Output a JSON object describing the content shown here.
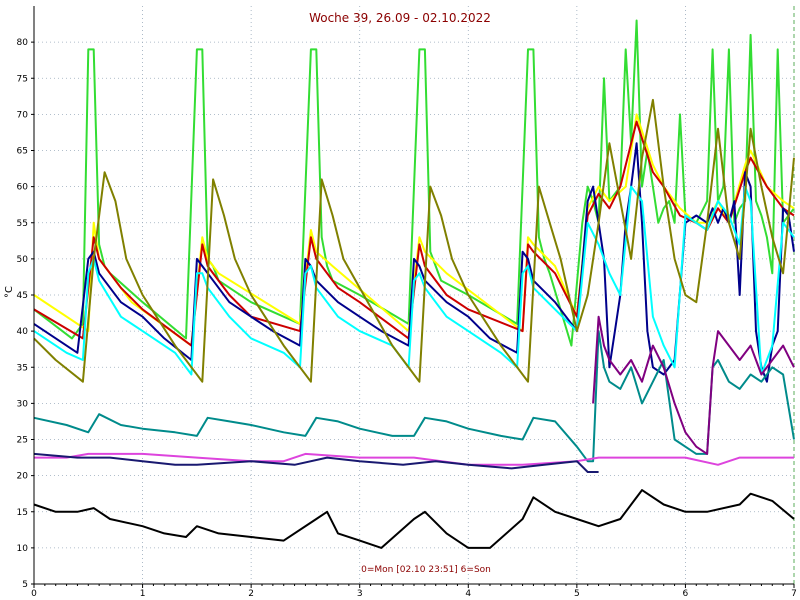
{
  "chart_data": {
    "type": "line",
    "title": "Woche 39, 26.09 - 02.10.2022",
    "ylabel": "°C",
    "footer": "0=Mon [02.10 23:51] 6=Son",
    "xlim": [
      0,
      7
    ],
    "ylim": [
      5,
      85
    ],
    "x_ticks": [
      "0",
      "1",
      "2",
      "3",
      "4",
      "5",
      "6",
      "7"
    ],
    "y_ticks": [
      "5",
      "10",
      "15",
      "20",
      "25",
      "30",
      "35",
      "40",
      "45",
      "50",
      "55",
      "60",
      "65",
      "70",
      "75",
      "80"
    ],
    "grid": true,
    "series": [
      {
        "color": "#33dd33",
        "x": [
          0,
          0.35,
          0.45,
          0.5,
          0.55,
          0.6,
          0.65,
          0.7,
          1.0,
          1.4,
          1.5,
          1.55,
          1.6,
          1.65,
          1.7,
          2.0,
          2.45,
          2.55,
          2.6,
          2.65,
          2.7,
          2.75,
          3.0,
          3.45,
          3.55,
          3.6,
          3.65,
          3.7,
          3.75,
          4.0,
          4.45,
          4.55,
          4.6,
          4.65,
          4.7,
          4.75,
          4.95,
          5.05,
          5.1,
          5.15,
          5.2,
          5.25,
          5.3,
          5.4,
          5.45,
          5.5,
          5.55,
          5.6,
          5.65,
          5.7,
          5.75,
          5.8,
          5.85,
          5.9,
          5.95,
          6.0,
          6.1,
          6.2,
          6.25,
          6.3,
          6.35,
          6.4,
          6.45,
          6.5,
          6.55,
          6.6,
          6.65,
          6.7,
          6.75,
          6.8,
          6.85,
          6.9,
          6.95,
          7.0
        ],
        "y": [
          43,
          39,
          41,
          79,
          79,
          52,
          49,
          48,
          44,
          39,
          79,
          79,
          50,
          49,
          47,
          44,
          41,
          79,
          79,
          53,
          49,
          47,
          45,
          41,
          79,
          79,
          51,
          49,
          47,
          45,
          41,
          79,
          79,
          53,
          50,
          48,
          38,
          55,
          60,
          58,
          55,
          75,
          58,
          60,
          79,
          66,
          83,
          60,
          65,
          60,
          55,
          57,
          58,
          55,
          70,
          56,
          55,
          58,
          79,
          58,
          60,
          79,
          55,
          57,
          58,
          81,
          58,
          56,
          53,
          48,
          79,
          55,
          56,
          57
        ]
      },
      {
        "color": "#ffff00",
        "x": [
          0,
          0.5,
          0.55,
          0.6,
          0.9,
          1.45,
          1.55,
          1.6,
          1.7,
          2.45,
          2.55,
          2.6,
          2.75,
          3.45,
          3.55,
          3.6,
          3.8,
          4.5,
          4.55,
          4.6,
          4.8,
          5.0,
          5.1,
          5.2,
          5.3,
          5.45,
          5.55,
          5.7,
          5.8,
          5.95,
          6.1,
          6.2,
          6.3,
          6.4,
          6.55,
          6.6,
          6.75,
          6.9,
          7.0
        ],
        "y": [
          45,
          40,
          55,
          50,
          44,
          38,
          53,
          50,
          48,
          41,
          54,
          51,
          49,
          40,
          53,
          51,
          48,
          40,
          53,
          52,
          49,
          42,
          57,
          60,
          58,
          60,
          70,
          63,
          60,
          57,
          55,
          55,
          58,
          55,
          63,
          65,
          60,
          58,
          57
        ]
      },
      {
        "color": "#cc0000",
        "x": [
          0,
          0.45,
          0.55,
          0.6,
          0.8,
          1.0,
          1.45,
          1.55,
          1.6,
          1.8,
          2.0,
          2.45,
          2.55,
          2.6,
          2.8,
          3.0,
          3.45,
          3.55,
          3.6,
          3.8,
          4.0,
          4.5,
          4.55,
          4.6,
          4.8,
          5.0,
          5.1,
          5.2,
          5.3,
          5.4,
          5.55,
          5.7,
          5.8,
          5.95,
          6.1,
          6.2,
          6.3,
          6.4,
          6.55,
          6.6,
          6.75,
          6.9,
          7.0
        ],
        "y": [
          43,
          39,
          53,
          50,
          46,
          43,
          38,
          52,
          49,
          45,
          42,
          40,
          53,
          50,
          46,
          44,
          39,
          52,
          49,
          45,
          43,
          40,
          52,
          51,
          48,
          42,
          56,
          59,
          57,
          60,
          69,
          62,
          60,
          56,
          55,
          54,
          57,
          55,
          62,
          64,
          60,
          57,
          56
        ]
      },
      {
        "color": "#00008b",
        "x": [
          0,
          0.4,
          0.5,
          0.55,
          0.6,
          0.8,
          1.0,
          1.2,
          1.45,
          1.5,
          1.55,
          1.6,
          1.8,
          2.0,
          2.2,
          2.45,
          2.5,
          2.55,
          2.6,
          2.8,
          3.0,
          3.2,
          3.45,
          3.5,
          3.55,
          3.6,
          3.8,
          4.0,
          4.2,
          4.45,
          4.5,
          4.55,
          4.6,
          4.8,
          5.0,
          5.1,
          5.15,
          5.2,
          5.25,
          5.3,
          5.35,
          5.4,
          5.45,
          5.5,
          5.55,
          5.6,
          5.65,
          5.7,
          5.8,
          5.9,
          6.0,
          6.1,
          6.2,
          6.25,
          6.3,
          6.35,
          6.4,
          6.45,
          6.5,
          6.55,
          6.6,
          6.65,
          6.7,
          6.75,
          6.8,
          6.85,
          6.9,
          6.95,
          7.0
        ],
        "y": [
          41,
          37,
          50,
          51,
          48,
          44,
          42,
          39,
          36,
          50,
          49,
          48,
          44,
          42,
          40,
          38,
          50,
          49,
          47,
          44,
          42,
          40,
          38,
          50,
          49,
          47,
          44,
          42,
          39,
          37,
          51,
          50,
          47,
          44,
          40,
          58,
          60,
          55,
          50,
          35,
          40,
          45,
          55,
          60,
          66,
          55,
          40,
          35,
          34,
          36,
          55,
          56,
          55,
          57,
          55,
          57,
          55,
          58,
          45,
          62,
          60,
          40,
          35,
          33,
          38,
          40,
          57,
          56,
          51
        ]
      },
      {
        "color": "#00ffff",
        "x": [
          0,
          0.3,
          0.45,
          0.5,
          0.55,
          0.6,
          0.8,
          1.0,
          1.3,
          1.45,
          1.5,
          1.55,
          1.6,
          1.8,
          2.0,
          2.3,
          2.45,
          2.5,
          2.55,
          2.6,
          2.8,
          3.0,
          3.3,
          3.45,
          3.5,
          3.55,
          3.6,
          3.8,
          4.0,
          4.3,
          4.45,
          4.5,
          4.55,
          4.6,
          4.8,
          5.0,
          5.1,
          5.2,
          5.3,
          5.4,
          5.5,
          5.6,
          5.7,
          5.8,
          5.9,
          6.0,
          6.1,
          6.2,
          6.3,
          6.4,
          6.5,
          6.55,
          6.6,
          6.7,
          6.8,
          6.9,
          7.0
        ],
        "y": [
          40,
          37,
          36,
          48,
          50,
          47,
          42,
          40,
          37,
          34,
          48,
          48,
          46,
          42,
          39,
          37,
          35,
          48,
          49,
          46,
          42,
          40,
          38,
          35,
          47,
          48,
          46,
          42,
          40,
          37,
          35,
          48,
          49,
          46,
          43,
          40,
          55,
          52,
          48,
          45,
          60,
          58,
          42,
          38,
          35,
          56,
          55,
          54,
          58,
          56,
          52,
          60,
          58,
          34,
          38,
          55,
          53
        ]
      },
      {
        "color": "#808000",
        "x": [
          0,
          0.2,
          0.45,
          0.55,
          0.65,
          0.75,
          0.85,
          1.0,
          1.3,
          1.55,
          1.65,
          1.75,
          1.85,
          2.0,
          2.3,
          2.55,
          2.65,
          2.75,
          2.85,
          3.0,
          3.3,
          3.55,
          3.65,
          3.75,
          3.85,
          4.0,
          4.3,
          4.55,
          4.65,
          4.75,
          4.85,
          5.0,
          5.1,
          5.2,
          5.3,
          5.4,
          5.5,
          5.6,
          5.7,
          5.8,
          5.9,
          6.0,
          6.1,
          6.2,
          6.3,
          6.4,
          6.5,
          6.6,
          6.7,
          6.8,
          6.9,
          7.0
        ],
        "y": [
          39,
          36,
          33,
          50,
          62,
          58,
          50,
          45,
          38,
          33,
          61,
          56,
          50,
          45,
          38,
          33,
          61,
          56,
          50,
          46,
          38,
          33,
          60,
          56,
          50,
          45,
          38,
          33,
          60,
          55,
          50,
          40,
          45,
          55,
          66,
          58,
          50,
          64,
          72,
          60,
          50,
          45,
          44,
          55,
          68,
          55,
          50,
          68,
          60,
          53,
          48,
          64
        ]
      },
      {
        "color": "#008b8b",
        "x": [
          0,
          0.3,
          0.5,
          0.6,
          0.8,
          1.0,
          1.3,
          1.5,
          1.6,
          1.8,
          2.0,
          2.3,
          2.5,
          2.6,
          2.8,
          3.0,
          3.3,
          3.5,
          3.6,
          3.8,
          4.0,
          4.3,
          4.5,
          4.6,
          4.8,
          5.0,
          5.1,
          5.15,
          5.2,
          5.25,
          5.3,
          5.4,
          5.5,
          5.6,
          5.7,
          5.8,
          5.9,
          6.0,
          6.1,
          6.2,
          6.25,
          6.3,
          6.4,
          6.5,
          6.6,
          6.7,
          6.8,
          6.9,
          7.0
        ],
        "y": [
          28,
          27,
          26,
          28.5,
          27,
          26.5,
          26,
          25.5,
          28,
          27.5,
          27,
          26,
          25.5,
          28,
          27.5,
          26.5,
          25.5,
          25.5,
          28,
          27.5,
          26.5,
          25.5,
          25,
          28,
          27.5,
          24,
          22,
          22,
          40,
          35,
          33,
          32,
          35,
          30,
          33,
          36,
          25,
          24,
          23,
          23,
          35,
          36,
          33,
          32,
          34,
          33,
          35,
          34,
          25
        ]
      },
      {
        "color": "#800080",
        "x": [
          5.15,
          5.2,
          5.25,
          5.3,
          5.4,
          5.5,
          5.6,
          5.7,
          5.8,
          5.9,
          6.0,
          6.1,
          6.2,
          6.25,
          6.3,
          6.4,
          6.5,
          6.6,
          6.7,
          6.8,
          6.9,
          7.0
        ],
        "y": [
          30,
          42,
          38,
          36,
          34,
          36,
          33,
          38,
          35,
          30,
          26,
          24,
          23,
          35,
          40,
          38,
          36,
          38,
          34,
          36,
          38,
          35
        ]
      },
      {
        "color": "#dd44dd",
        "x": [
          0,
          0.3,
          0.5,
          1.0,
          1.5,
          2.0,
          2.3,
          2.5,
          3.0,
          3.5,
          4.0,
          4.5,
          5.0,
          5.2,
          5.5,
          6.0,
          6.3,
          6.5,
          7.0
        ],
        "y": [
          22.5,
          22.5,
          23,
          23,
          22.5,
          22,
          22,
          23,
          22.5,
          22.5,
          21.5,
          21.5,
          22,
          22.5,
          22.5,
          22.5,
          21.5,
          22.5,
          22.5
        ]
      },
      {
        "color": "#191970",
        "x": [
          0,
          0.4,
          0.7,
          1.0,
          1.3,
          1.5,
          2.0,
          2.4,
          2.7,
          3.0,
          3.4,
          3.7,
          4.0,
          4.4,
          4.7,
          5.0,
          5.1,
          5.2
        ],
        "y": [
          23,
          22.5,
          22.5,
          22,
          21.5,
          21.5,
          22,
          21.5,
          22.5,
          22,
          21.5,
          22,
          21.5,
          21,
          21.5,
          22,
          20.5,
          20.5
        ]
      },
      {
        "color": "#000000",
        "x": [
          0,
          0.2,
          0.4,
          0.55,
          0.7,
          1.0,
          1.2,
          1.4,
          1.5,
          1.7,
          2.0,
          2.3,
          2.6,
          2.7,
          2.8,
          3.0,
          3.2,
          3.5,
          3.6,
          3.8,
          4.0,
          4.2,
          4.5,
          4.6,
          4.8,
          5.0,
          5.2,
          5.4,
          5.6,
          5.8,
          6.0,
          6.2,
          6.5,
          6.6,
          6.8,
          7.0
        ],
        "y": [
          16,
          15,
          15,
          15.5,
          14,
          13,
          12,
          11.5,
          13,
          12,
          11.5,
          11,
          14,
          15,
          12,
          11,
          10,
          14,
          15,
          12,
          10,
          10,
          14,
          17,
          15,
          14,
          13,
          14,
          18,
          16,
          15,
          15,
          16,
          17.5,
          16.5,
          14
        ]
      }
    ]
  }
}
